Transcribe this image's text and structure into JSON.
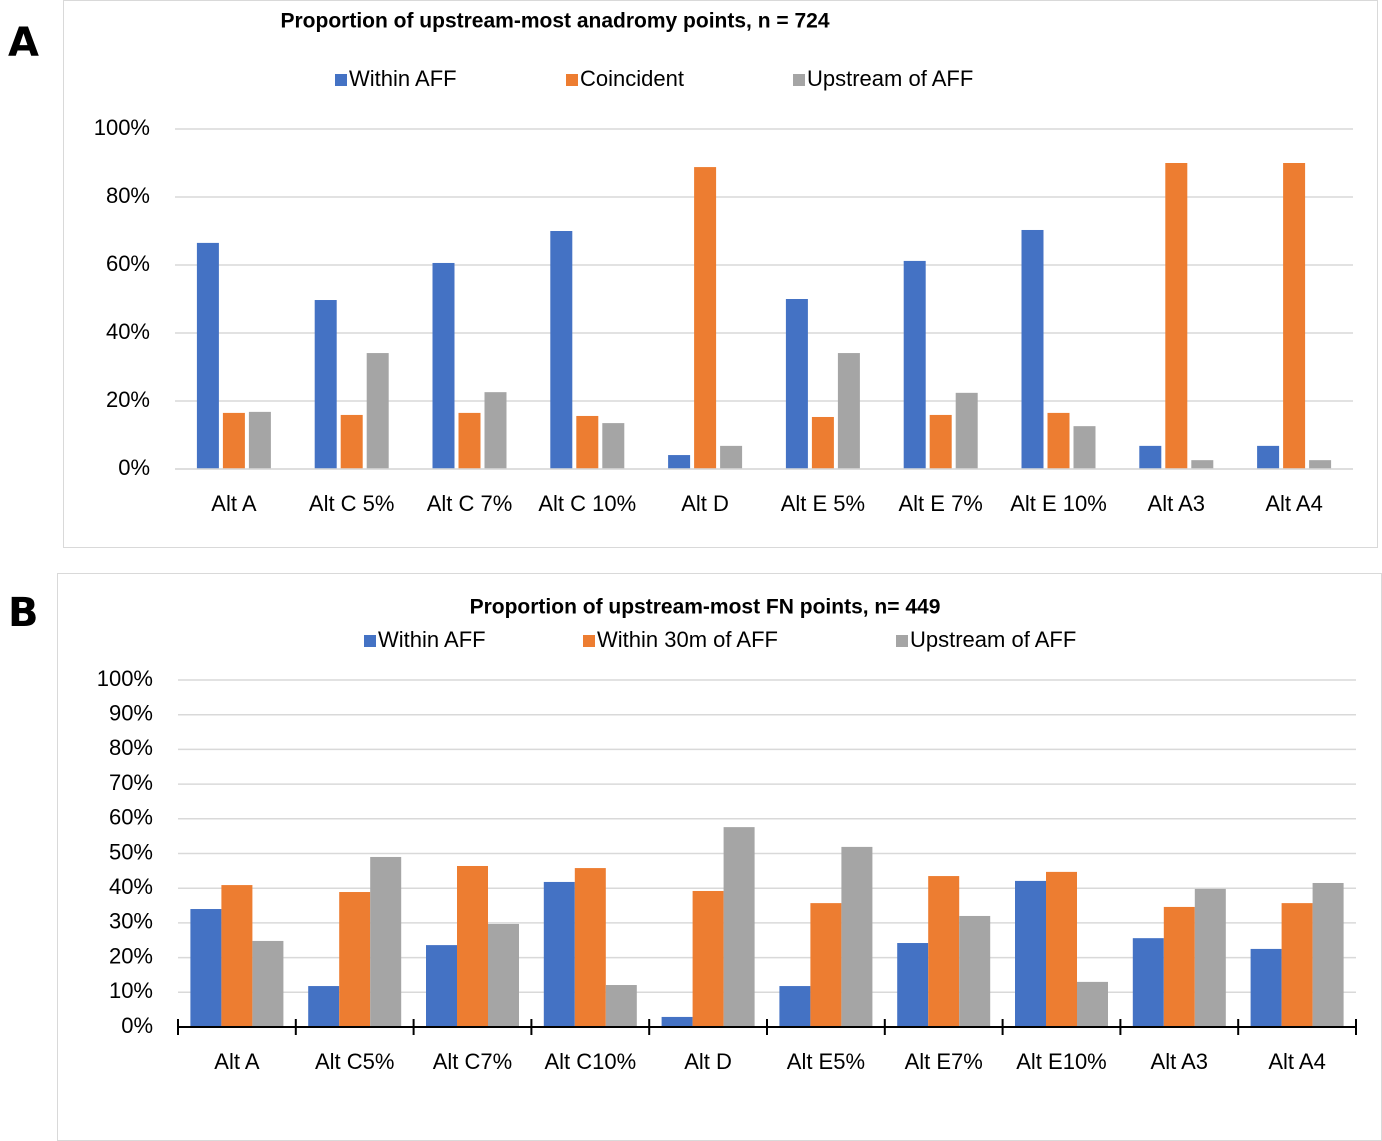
{
  "chart_data": [
    {
      "type": "bar",
      "label": "A",
      "title": "Proportion of upstream-most anadromy points, n = 724",
      "categories": [
        "Alt A",
        "Alt C 5%",
        "Alt C 7%",
        "Alt C 10%",
        "Alt D",
        "Alt E 5%",
        "Alt E 7%",
        "Alt E 10%",
        "Alt A3",
        "Alt A4"
      ],
      "series": [
        {
          "name": "Within AFF",
          "color": "#4472c4",
          "values": [
            66.5,
            49.7,
            60.6,
            70,
            4.1,
            50,
            61.2,
            70.3,
            6.8,
            6.8
          ]
        },
        {
          "name": "Coincident",
          "color": "#ed7d31",
          "values": [
            16.5,
            15.9,
            16.5,
            15.6,
            88.8,
            15.3,
            15.9,
            16.5,
            90,
            90
          ]
        },
        {
          "name": "Upstream of AFF",
          "color": "#a5a5a5",
          "values": [
            16.8,
            34.1,
            22.6,
            13.5,
            6.8,
            34.1,
            22.4,
            12.6,
            2.6,
            2.6
          ]
        }
      ],
      "ylim": [
        0,
        100
      ],
      "yticks": [
        {
          "value": 0,
          "label": "0%"
        },
        {
          "value": 20,
          "label": "20%"
        },
        {
          "value": 40,
          "label": "40%"
        },
        {
          "value": 60,
          "label": "60%"
        },
        {
          "value": 80,
          "label": "80%"
        },
        {
          "value": 100,
          "label": "100%"
        }
      ],
      "grid": true,
      "category_ticks": false
    },
    {
      "type": "bar",
      "label": "B",
      "title": "Proportion of upstream-most FN points, n= 449",
      "categories": [
        "Alt A",
        "Alt C5%",
        "Alt C7%",
        "Alt C10%",
        "Alt D",
        "Alt E5%",
        "Alt E7%",
        "Alt E10%",
        "Alt A3",
        "Alt A4"
      ],
      "series": [
        {
          "name": "Within AFF",
          "color": "#4472c4",
          "values": [
            34,
            11.8,
            23.6,
            41.8,
            2.9,
            11.8,
            24.2,
            42.1,
            25.6,
            22.5
          ]
        },
        {
          "name": "Within 30m of AFF",
          "color": "#ed7d31",
          "values": [
            40.9,
            38.9,
            46.4,
            45.8,
            39.2,
            35.7,
            43.5,
            44.7,
            34.6,
            35.7
          ]
        },
        {
          "name": "Upstream of AFF",
          "color": "#a5a5a5",
          "values": [
            24.8,
            49,
            29.7,
            12.1,
            57.6,
            51.9,
            32,
            13,
            39.8,
            41.5
          ]
        }
      ],
      "ylim": [
        0,
        100
      ],
      "yticks": [
        {
          "value": 0,
          "label": "0%"
        },
        {
          "value": 10,
          "label": "10%"
        },
        {
          "value": 20,
          "label": "20%"
        },
        {
          "value": 30,
          "label": "30%"
        },
        {
          "value": 40,
          "label": "40%"
        },
        {
          "value": 50,
          "label": "50%"
        },
        {
          "value": 60,
          "label": "60%"
        },
        {
          "value": 70,
          "label": "70%"
        },
        {
          "value": 80,
          "label": "80%"
        },
        {
          "value": 90,
          "label": "90%"
        },
        {
          "value": 100,
          "label": "100%"
        }
      ],
      "grid": true,
      "category_ticks": true
    }
  ]
}
